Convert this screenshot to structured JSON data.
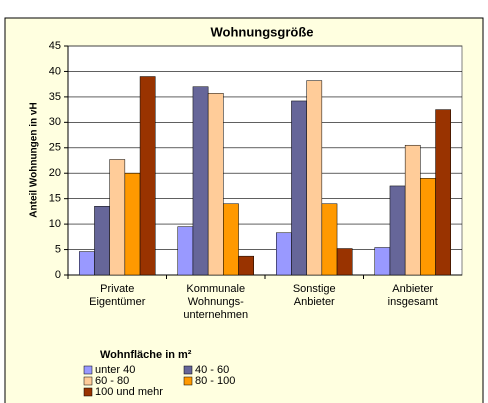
{
  "chart_data": {
    "type": "bar",
    "title": "Wohnungsgröße",
    "y_label": "Anteil Wohnungen in vH",
    "categories": [
      [
        "Private",
        "Eigentümer"
      ],
      [
        "Kommunale",
        "Wohnungs-",
        "unternehmen"
      ],
      [
        "Sonstige",
        "Anbieter"
      ],
      [
        "Anbieter",
        "insgesamt"
      ]
    ],
    "series": [
      {
        "name": "unter 40",
        "color": "#9999ff",
        "values": [
          4.6,
          9.5,
          8.3,
          5.4
        ]
      },
      {
        "name": "40 - 60",
        "color": "#666699",
        "values": [
          13.5,
          37,
          34.2,
          17.5
        ]
      },
      {
        "name": "60 - 80",
        "color": "#ffcc99",
        "values": [
          22.7,
          35.7,
          38.2,
          25.5
        ]
      },
      {
        "name": "80 - 100",
        "color": "#ff9900",
        "values": [
          20,
          14,
          14,
          19
        ]
      },
      {
        "name": "100 und mehr",
        "color": "#993300",
        "values": [
          39,
          3.7,
          5.2,
          32.5
        ]
      }
    ],
    "legend_title": "Wohnfläche in m²",
    "ylim": [
      0,
      45
    ],
    "yticks": [
      0,
      5,
      10,
      15,
      20,
      25,
      30,
      35,
      40,
      45
    ],
    "grid": true
  }
}
